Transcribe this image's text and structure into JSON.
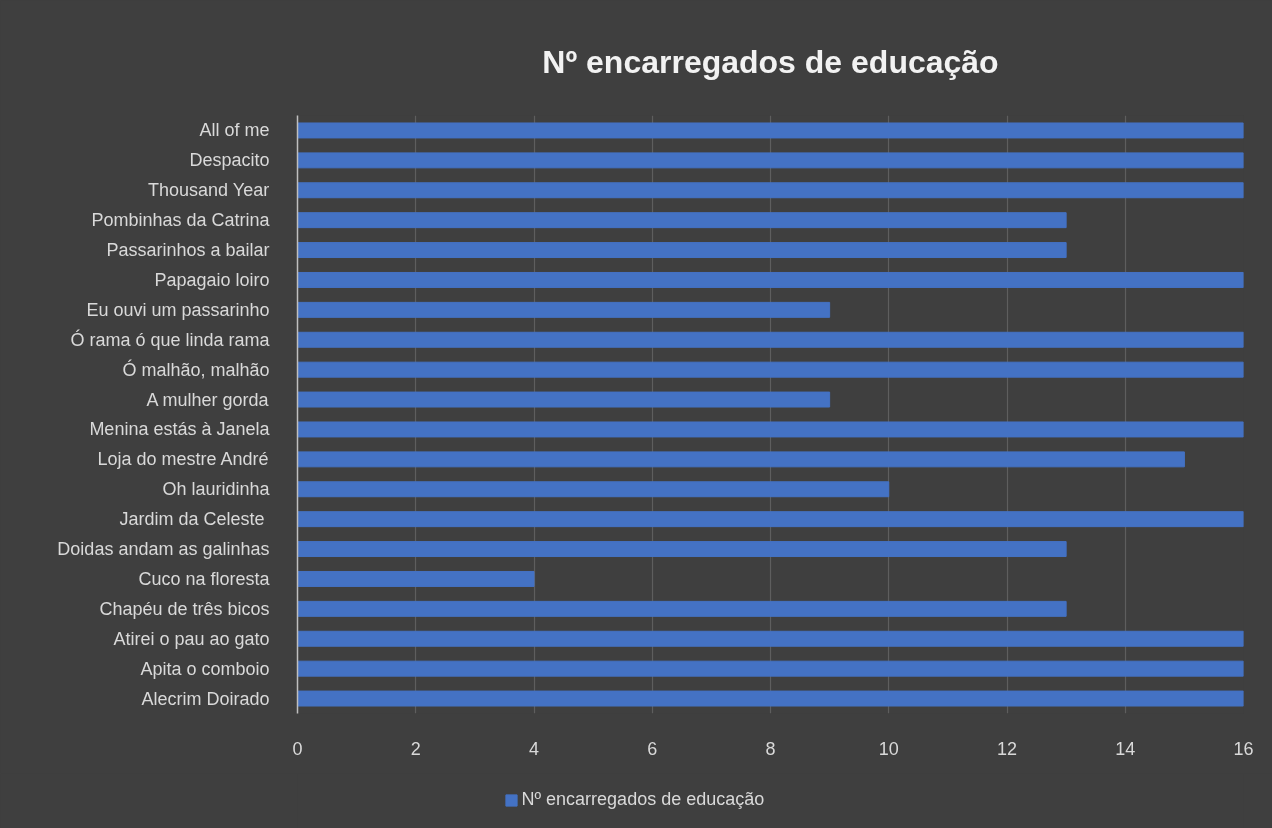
{
  "chart_data": {
    "type": "bar",
    "orientation": "horizontal",
    "title": "Nº encarregados de educação",
    "categories": [
      "All of me",
      "Despacito",
      "Thousand Year",
      "Pombinhas da Catrina",
      "Passarinhos a bailar",
      "Papagaio loiro",
      "Eu ouvi um passarinho",
      "Ó rama ó que linda rama",
      "Ó malhão, malhão",
      "A mulher gorda",
      "Menina estás à Janela",
      "Loja do mestre André",
      "Oh lauridinha",
      "Jardim da Celeste ",
      "Doidas andam as galinhas",
      "Cuco na floresta",
      "Chapéu de três bicos",
      "Atirei o pau ao gato",
      "Apita o comboio",
      "Alecrim Doirado"
    ],
    "series": [
      {
        "name": "Nº encarregados de educação",
        "color": "#4472c4",
        "values": [
          16,
          16,
          16,
          13,
          13,
          16,
          9,
          16,
          16,
          9,
          16,
          15,
          10,
          16,
          13,
          4,
          13,
          16,
          16,
          16
        ]
      }
    ],
    "xlim": [
      0,
      16
    ],
    "xticks": [
      0,
      2,
      4,
      6,
      8,
      10,
      12,
      14,
      16
    ],
    "grid": "x",
    "legend": "bottom"
  }
}
